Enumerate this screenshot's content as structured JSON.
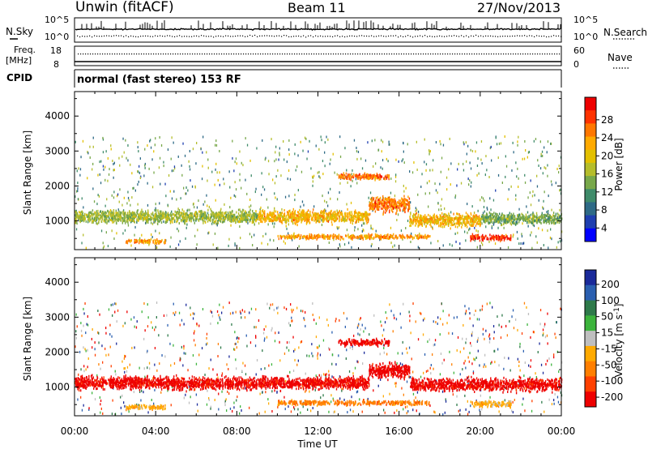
{
  "header": {
    "station": "Unwin (fitACF)",
    "beam": "Beam 11",
    "date": "27/Nov/2013"
  },
  "status_panel": {
    "nsky_label": "N.Sky",
    "nsearch_label": "N.Search",
    "noise_ticks": [
      "10^5",
      "10^0"
    ],
    "freq_label": "Freq.",
    "freq_unit": "[MHz]",
    "freq_ticks": [
      "18",
      "8"
    ],
    "nave_label": "Nave",
    "nave_ticks": [
      "60",
      "0"
    ],
    "cpid_label": "CPID",
    "cpid_text": "normal (fast stereo) 153 RF"
  },
  "axes": {
    "x_ticks": [
      "00:00",
      "04:00",
      "08:00",
      "12:00",
      "16:00",
      "20:00",
      "00:00"
    ],
    "x_label": "Time UT",
    "y_label": "Slant Range [km]",
    "y_ticks": [
      "4000",
      "3000",
      "2000",
      "1000"
    ]
  },
  "power_colorbar": {
    "label": "Power [dB]",
    "ticks": [
      "28",
      "24",
      "20",
      "16",
      "12",
      "8",
      "4"
    ],
    "colors": [
      "#ee0000",
      "#ff3300",
      "#ff7700",
      "#ffaa00",
      "#e3c000",
      "#b5bd2b",
      "#78a84a",
      "#3f8b6a",
      "#2e6a86",
      "#1f3fb0",
      "#0000ff"
    ]
  },
  "velocity_colorbar": {
    "label": "Velocity [m s",
    "label_sup": "-1",
    "label_end": "]",
    "ticks": [
      "200",
      "100",
      "50",
      "15",
      "-15",
      "-50",
      "-100",
      "-200"
    ],
    "colors": [
      "#1a2a9a",
      "#2a5fb0",
      "#2e7a4a",
      "#3cb43c",
      "#bfbfbf",
      "#ffaa00",
      "#ff7f00",
      "#ff4000",
      "#ee0000"
    ]
  },
  "chart_data": [
    {
      "type": "heatmap",
      "title": "Power",
      "xlabel": "Time UT",
      "ylabel": "Slant Range [km]",
      "xlim": [
        "00:00",
        "24:00"
      ],
      "ylim": [
        180,
        4700
      ],
      "colorbar": {
        "label": "Power [dB]",
        "range": [
          0,
          30
        ]
      },
      "scatter_bands": [
        {
          "t_start": 0.0,
          "t_end": 9.0,
          "range_center": 1150,
          "range_width": 250,
          "typical_power_db": 14
        },
        {
          "t_start": 9.0,
          "t_end": 14.5,
          "range_center": 1150,
          "range_width": 250,
          "typical_power_db": 20
        },
        {
          "t_start": 14.5,
          "t_end": 16.5,
          "range_center": 1500,
          "range_width": 300,
          "typical_power_db": 24
        },
        {
          "t_start": 16.5,
          "t_end": 20.0,
          "range_center": 1050,
          "range_width": 250,
          "typical_power_db": 20
        },
        {
          "t_start": 20.0,
          "t_end": 24.0,
          "range_center": 1100,
          "range_width": 220,
          "typical_power_db": 12
        },
        {
          "t_start": 13.0,
          "t_end": 15.5,
          "range_center": 2300,
          "range_width": 130,
          "typical_power_db": 24
        },
        {
          "t_start": 10.0,
          "t_end": 17.5,
          "range_center": 580,
          "range_width": 90,
          "typical_power_db": 22
        },
        {
          "t_start": 2.5,
          "t_end": 4.5,
          "range_center": 450,
          "range_width": 90,
          "typical_power_db": 22
        },
        {
          "t_start": 19.5,
          "t_end": 21.5,
          "range_center": 550,
          "range_width": 120,
          "typical_power_db": 28
        }
      ]
    },
    {
      "type": "heatmap",
      "title": "Velocity",
      "xlabel": "Time UT",
      "ylabel": "Slant Range [km]",
      "xlim": [
        "00:00",
        "24:00"
      ],
      "ylim": [
        180,
        4700
      ],
      "colorbar": {
        "label": "Velocity [m s-1]",
        "range": [
          -200,
          200
        ]
      },
      "scatter_bands": [
        {
          "t_start": 0.0,
          "t_end": 14.5,
          "range_center": 1150,
          "range_width": 250,
          "typical_velocity": -200
        },
        {
          "t_start": 14.5,
          "t_end": 16.5,
          "range_center": 1500,
          "range_width": 300,
          "typical_velocity": -200
        },
        {
          "t_start": 16.5,
          "t_end": 24.0,
          "range_center": 1100,
          "range_width": 250,
          "typical_velocity": -200
        },
        {
          "t_start": 13.0,
          "t_end": 15.5,
          "range_center": 2300,
          "range_width": 130,
          "typical_velocity": -200
        },
        {
          "t_start": 10.0,
          "t_end": 17.5,
          "range_center": 580,
          "range_width": 90,
          "typical_velocity": -100
        },
        {
          "t_start": 2.5,
          "t_end": 4.5,
          "range_center": 450,
          "range_width": 90,
          "typical_velocity": -50
        },
        {
          "t_start": 19.5,
          "t_end": 21.5,
          "range_center": 550,
          "range_width": 120,
          "typical_velocity": -50
        }
      ]
    }
  ]
}
